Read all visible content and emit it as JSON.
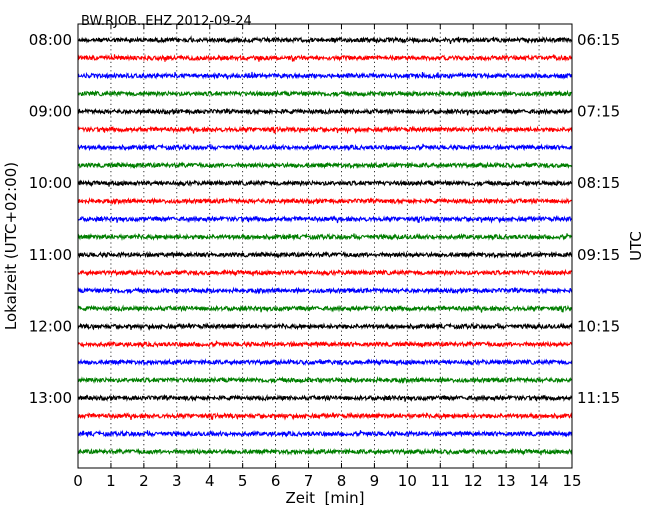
{
  "chart_data": {
    "type": "line",
    "title": "BW.RJOB..EHZ 2012-09-24",
    "xlabel": "Zeit  [min]",
    "ylabel_left": "Lokalzeit (UTC+02:00)",
    "ylabel_right": "UTC",
    "xlim": [
      0,
      15
    ],
    "x_ticks": [
      "0",
      "1",
      "2",
      "3",
      "4",
      "5",
      "6",
      "7",
      "8",
      "9",
      "10",
      "11",
      "12",
      "13",
      "14",
      "15"
    ],
    "grid": "vertical dotted",
    "left_tick_labels": [
      "08:00",
      "09:00",
      "10:00",
      "11:00",
      "12:00",
      "13:00"
    ],
    "right_tick_labels": [
      "06:15",
      "07:15",
      "08:15",
      "09:15",
      "10:15",
      "11:15"
    ],
    "trace_count": 24,
    "trace_colors": [
      "#000000",
      "#ff0000",
      "#0000ff",
      "#007f00"
    ],
    "labeled_trace_indices": [
      0,
      4,
      8,
      12,
      16,
      20
    ],
    "trace_amplitude_relative": 0.06
  }
}
